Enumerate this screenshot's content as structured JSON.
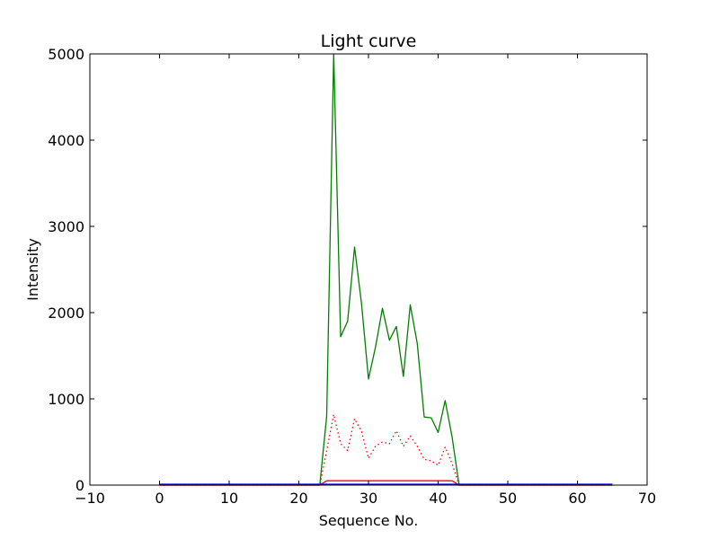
{
  "chart_data": {
    "type": "line",
    "title": "Light curve",
    "xlabel": "Sequence No.",
    "ylabel": "Intensity",
    "xlim": [
      -10,
      70
    ],
    "ylim": [
      0,
      5000
    ],
    "xticks": [
      -10,
      0,
      10,
      20,
      30,
      40,
      50,
      60,
      70
    ],
    "yticks": [
      0,
      1000,
      2000,
      3000,
      4000,
      5000
    ],
    "grid": false,
    "series": [
      {
        "color": "#008000",
        "style": "solid",
        "x": [
          0,
          23,
          24,
          25,
          26,
          27,
          28,
          29,
          30,
          31,
          32,
          33,
          34,
          35,
          36,
          37,
          38,
          39,
          40,
          41,
          42,
          43,
          65
        ],
        "y": [
          0,
          0,
          800,
          5000,
          1720,
          1900,
          2760,
          2100,
          1230,
          1600,
          2050,
          1680,
          1840,
          1260,
          2090,
          1640,
          790,
          780,
          610,
          980,
          560,
          0,
          0
        ]
      },
      {
        "color": "#ff0000",
        "style": "dotted",
        "x": [
          0,
          23,
          24,
          25,
          26,
          27,
          28,
          29,
          30,
          31,
          32,
          33,
          34,
          35,
          36,
          37,
          38,
          39,
          40,
          41,
          42,
          43,
          65
        ],
        "y": [
          0,
          0,
          400,
          820,
          480,
          400,
          770,
          620,
          310,
          450,
          500,
          480,
          630,
          450,
          570,
          450,
          300,
          280,
          230,
          440,
          250,
          0,
          0
        ]
      },
      {
        "color": "#ff0000",
        "style": "solid",
        "x": [
          0,
          23,
          24,
          25,
          26,
          27,
          28,
          29,
          30,
          31,
          32,
          33,
          34,
          35,
          36,
          37,
          38,
          39,
          40,
          41,
          42,
          43,
          65
        ],
        "y": [
          0,
          0,
          50,
          50,
          50,
          50,
          50,
          50,
          50,
          50,
          50,
          50,
          50,
          50,
          50,
          50,
          50,
          50,
          50,
          50,
          50,
          0,
          0
        ]
      },
      {
        "color": "#0000ff",
        "style": "solid",
        "x": [
          0,
          65
        ],
        "y": [
          10,
          10
        ]
      }
    ]
  }
}
